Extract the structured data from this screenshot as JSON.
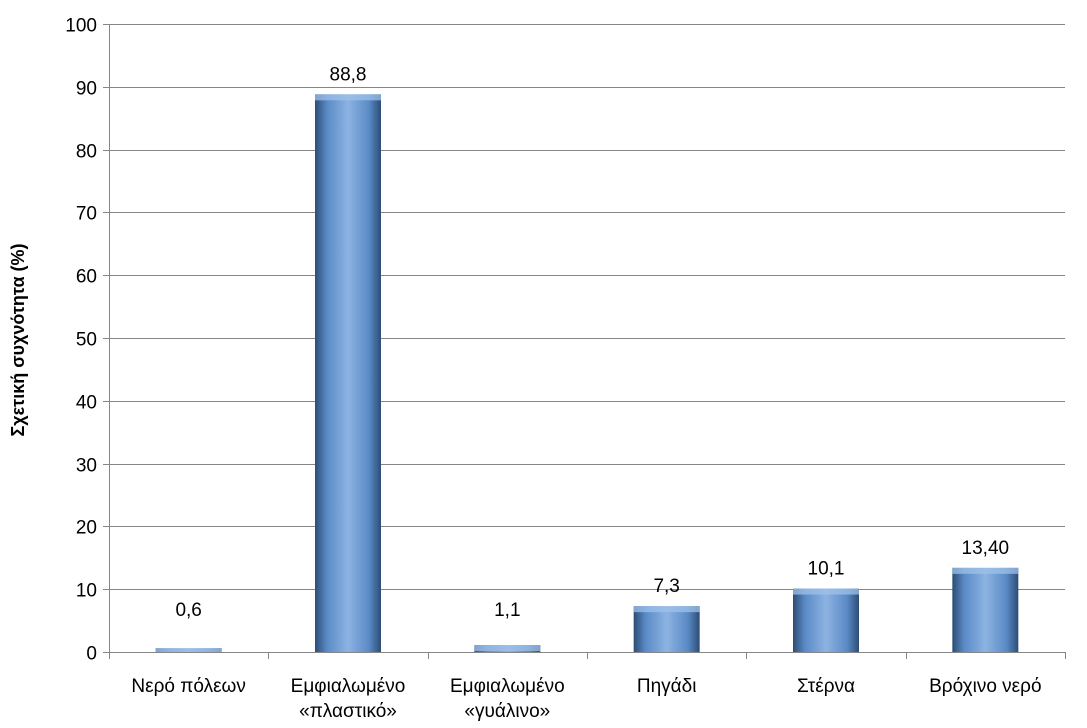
{
  "chart_data": {
    "type": "bar",
    "title": "",
    "xlabel": "",
    "ylabel": "Σχετική συχνότητα (%)",
    "ylim": [
      0,
      100
    ],
    "yticks": [
      0,
      10,
      20,
      30,
      40,
      50,
      60,
      70,
      80,
      90,
      100
    ],
    "grid": true,
    "legend": "none",
    "categories": [
      [
        "Νερό πόλεων"
      ],
      [
        "Εμφιαλωμένο",
        "«πλαστικό»"
      ],
      [
        "Εμφιαλωμένο",
        "«γυάλινο»"
      ],
      [
        "Πηγάδι"
      ],
      [
        "Στέρνα"
      ],
      [
        "Βρόχινο νερό"
      ]
    ],
    "values": [
      0.6,
      88.8,
      1.1,
      7.3,
      10.1,
      13.4
    ],
    "data_labels": [
      "0,6",
      "88,8",
      "1,1",
      "7,3",
      "10,1",
      "13,40"
    ],
    "colors": {
      "bar": "#4f81bd",
      "bar_light": "#8db3e2",
      "bar_dark": "#2c4d75",
      "grid": "#868686",
      "axis": "#868686"
    }
  }
}
